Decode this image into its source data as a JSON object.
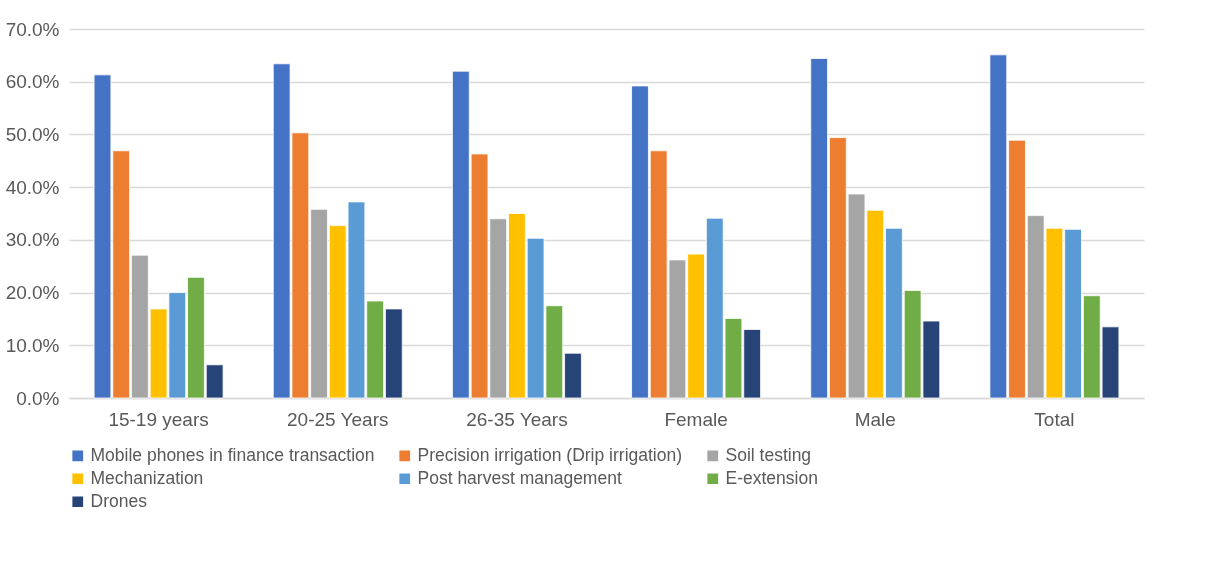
{
  "chart_data": {
    "type": "bar",
    "categories": [
      "15-19 years",
      "20-25 Years",
      "26-35 Years",
      "Female",
      "Male",
      "Total"
    ],
    "series": [
      {
        "name": "Mobile phones in finance transaction",
        "color": "#4472c4",
        "values": [
          61.3,
          63.4,
          62.0,
          59.2,
          64.4,
          65.1
        ]
      },
      {
        "name": "Precision irrigation (Drip irrigation)",
        "color": "#ed7d31",
        "values": [
          46.9,
          50.3,
          46.3,
          46.9,
          49.4,
          48.9
        ]
      },
      {
        "name": "Soil testing",
        "color": "#a5a5a5",
        "values": [
          27.1,
          35.8,
          34.0,
          26.2,
          38.7,
          34.6
        ]
      },
      {
        "name": "Mechanization",
        "color": "#ffc000",
        "values": [
          16.9,
          32.7,
          35.0,
          27.3,
          35.6,
          32.2
        ]
      },
      {
        "name": "Post harvest management",
        "color": "#5b9bd5",
        "values": [
          20.0,
          37.2,
          30.3,
          34.1,
          32.2,
          32.0
        ]
      },
      {
        "name": "E-extension",
        "color": "#70ad47",
        "values": [
          22.9,
          18.4,
          17.5,
          15.1,
          20.4,
          19.4
        ]
      },
      {
        "name": "Drones",
        "color": "#264478",
        "values": [
          6.3,
          16.9,
          8.5,
          13.0,
          14.6,
          13.5
        ]
      }
    ],
    "ylim": [
      0,
      70
    ],
    "yticks": [
      {
        "value": 0,
        "label": "0.0%"
      },
      {
        "value": 10,
        "label": "10.0%"
      },
      {
        "value": 20,
        "label": "20.0%"
      },
      {
        "value": 30,
        "label": "30.0%"
      },
      {
        "value": 40,
        "label": "40.0%"
      },
      {
        "value": 50,
        "label": "50.0%"
      },
      {
        "value": 60,
        "label": "60.0%"
      },
      {
        "value": 70,
        "label": "70.0%"
      }
    ],
    "grid": "y",
    "legend": "bottom"
  }
}
